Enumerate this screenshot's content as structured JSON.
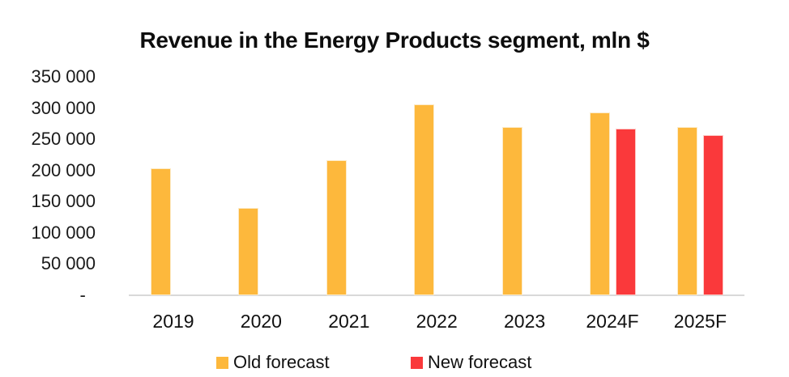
{
  "chart_data": {
    "type": "bar",
    "title": "Revenue in the Energy Products segment, mln $",
    "categories": [
      "2019",
      "2020",
      "2021",
      "2022",
      "2023",
      "2024F",
      "2025F"
    ],
    "series": [
      {
        "name": "Old forecast",
        "color": "#FDB83C",
        "border_color": "#FCEBC9",
        "values": [
          203000,
          140000,
          217000,
          306000,
          269000,
          293000,
          269000
        ]
      },
      {
        "name": "New forecast",
        "color": "#FA393B",
        "border_color": "#FDCBC7",
        "values": [
          null,
          null,
          null,
          null,
          null,
          267000,
          257000
        ]
      }
    ],
    "y_tick_labels": [
      "350 000",
      "300 000",
      "250 000",
      "200 000",
      "150 000",
      "100 000",
      "50 000",
      "-"
    ],
    "ylim": [
      0,
      350000
    ],
    "y_tick_step": 50000,
    "grid": false,
    "legend_position": "bottom",
    "axis_line_color": "#D9D9D9",
    "background_color": "#FFFFFF",
    "text_color": "#111111"
  }
}
